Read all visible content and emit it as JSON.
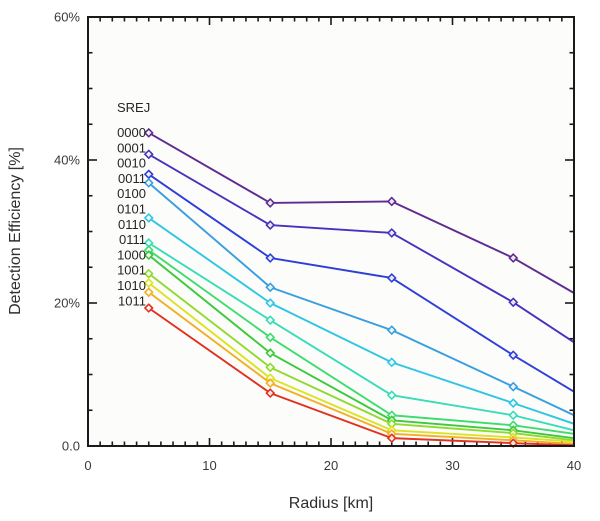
{
  "chart_data": {
    "type": "line",
    "title": "",
    "xlabel": "Radius [km]",
    "ylabel": "Detection Efficiency [%]",
    "legend_title": "SREJ",
    "legend_position": "inside-top-left",
    "grid": false,
    "marker": "open-diamond",
    "x": [
      5,
      15,
      25,
      35,
      40
    ],
    "marker_x": [
      5,
      15,
      25,
      35
    ],
    "xlim": [
      0,
      40
    ],
    "ylim": [
      0,
      60
    ],
    "x_tick_values": [
      0,
      10,
      20,
      30,
      40
    ],
    "x_tick_labels": [
      "0",
      "10",
      "20",
      "30",
      "40"
    ],
    "x_minor_step": 1,
    "y_tick_values": [
      0,
      20,
      40,
      60
    ],
    "y_tick_labels": [
      "0.0",
      "20%",
      "40%",
      "60%"
    ],
    "y_minor_step": 5,
    "axis_color": "#1a1a1a",
    "plot_background": "#fcfcfa",
    "series": [
      {
        "name": "0000",
        "color": "#5E2B91",
        "values": [
          43.8,
          34.0,
          34.2,
          26.3,
          21.4
        ]
      },
      {
        "name": "0001",
        "color": "#4433BF",
        "values": [
          40.8,
          30.9,
          29.8,
          20.1,
          14.5
        ]
      },
      {
        "name": "0010",
        "color": "#2E3FD9",
        "values": [
          38.0,
          26.3,
          23.5,
          12.7,
          7.6
        ]
      },
      {
        "name": "0011",
        "color": "#389EE0",
        "values": [
          36.8,
          22.2,
          16.2,
          8.3,
          4.3
        ]
      },
      {
        "name": "0100",
        "color": "#2EC6E3",
        "values": [
          31.9,
          20.0,
          11.7,
          6.0,
          3.1
        ]
      },
      {
        "name": "0101",
        "color": "#38DCB8",
        "values": [
          28.4,
          17.6,
          7.1,
          4.3,
          2.2
        ]
      },
      {
        "name": "0110",
        "color": "#3EDC6E",
        "values": [
          27.4,
          15.2,
          4.3,
          2.9,
          1.7
        ]
      },
      {
        "name": "0111",
        "color": "#3CC93C",
        "values": [
          26.7,
          13.0,
          3.6,
          2.2,
          1.1
        ]
      },
      {
        "name": "1000",
        "color": "#90D92E",
        "values": [
          24.1,
          11.0,
          3.1,
          1.8,
          0.8
        ]
      },
      {
        "name": "1001",
        "color": "#DCE324",
        "values": [
          22.8,
          9.5,
          2.2,
          1.2,
          0.6
        ]
      },
      {
        "name": "1010",
        "color": "#F2AE24",
        "values": [
          21.5,
          8.8,
          1.7,
          0.8,
          0.3
        ]
      },
      {
        "name": "1011",
        "color": "#E0301F",
        "values": [
          19.3,
          7.4,
          1.1,
          0.4,
          0.1
        ]
      }
    ]
  }
}
